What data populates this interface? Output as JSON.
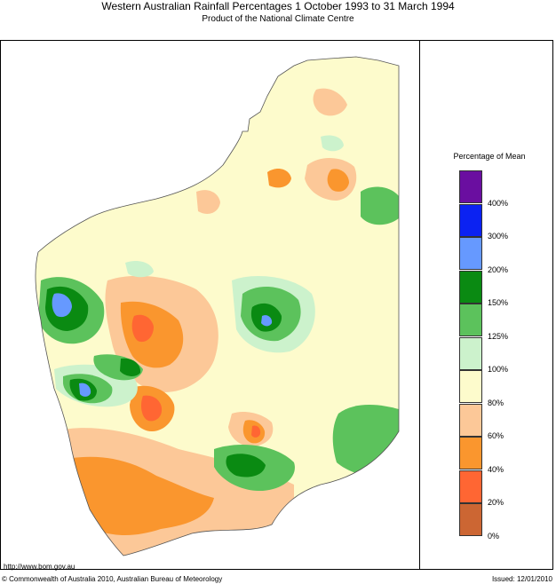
{
  "header": {
    "title": "Western Australian Rainfall Percentages 1 October 1993 to 31 March 1994",
    "subtitle": "Product of the National Climate Centre"
  },
  "legend": {
    "title": "Percentage of Mean",
    "bins": [
      {
        "from": 400,
        "color": "#6a0ea0"
      },
      {
        "from": 300,
        "to": 400,
        "color": "#0b22f2"
      },
      {
        "from": 200,
        "to": 300,
        "color": "#6699ff"
      },
      {
        "from": 150,
        "to": 200,
        "color": "#0a8a12"
      },
      {
        "from": 125,
        "to": 150,
        "color": "#5cc25c"
      },
      {
        "from": 100,
        "to": 125,
        "color": "#ccf2cc"
      },
      {
        "from": 80,
        "to": 100,
        "color": "#fdfbcc"
      },
      {
        "from": 60,
        "to": 80,
        "color": "#fcc898"
      },
      {
        "from": 40,
        "to": 60,
        "color": "#fa962e"
      },
      {
        "from": 20,
        "to": 40,
        "color": "#ff6633"
      },
      {
        "from": 0,
        "to": 20,
        "color": "#cc6633"
      }
    ],
    "ticks": [
      "400%",
      "300%",
      "200%",
      "150%",
      "125%",
      "100%",
      "80%",
      "60%",
      "40%",
      "20%",
      "0%"
    ]
  },
  "footer": {
    "url": "http://www.bom.gov.au",
    "copyright": "© Commonwealth of Australia 2010, Australian Bureau of Meteorology",
    "issued": "Issued: 12/01/2010"
  }
}
